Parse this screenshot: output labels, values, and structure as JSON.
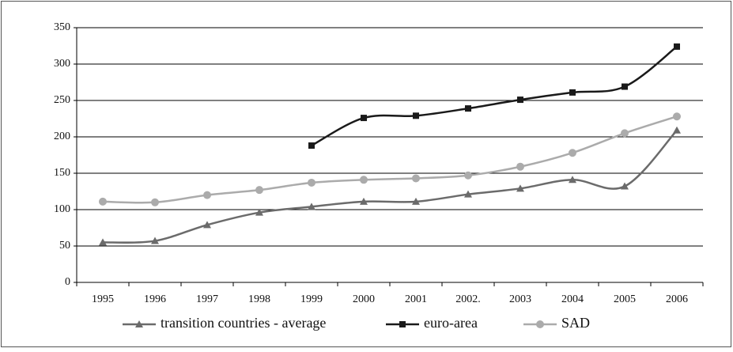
{
  "chart_data": {
    "type": "line",
    "categories": [
      "1995",
      "1996",
      "1997",
      "1998",
      "1999",
      "2000",
      "2001",
      "2002.",
      "2003",
      "2004",
      "2005",
      "2006"
    ],
    "series": [
      {
        "name": "transition countries - average",
        "color": "#6b6b6b",
        "marker": "triangle",
        "values": [
          55,
          57,
          79,
          96,
          104,
          111,
          111,
          121,
          129,
          141,
          132,
          209
        ]
      },
      {
        "name": "euro-area",
        "color": "#1a1a1a",
        "marker": "square",
        "values": [
          null,
          null,
          null,
          null,
          188,
          226,
          229,
          239,
          251,
          261,
          269,
          324
        ]
      },
      {
        "name": "SAD",
        "color": "#ababab",
        "marker": "circle",
        "values": [
          111,
          110,
          120,
          127,
          137,
          141,
          143,
          147,
          159,
          178,
          205,
          228
        ]
      }
    ],
    "ylim": [
      0,
      350
    ],
    "yticks": [
      0,
      50,
      100,
      150,
      200,
      250,
      300,
      350
    ],
    "grid": true,
    "legend": "bottom"
  }
}
